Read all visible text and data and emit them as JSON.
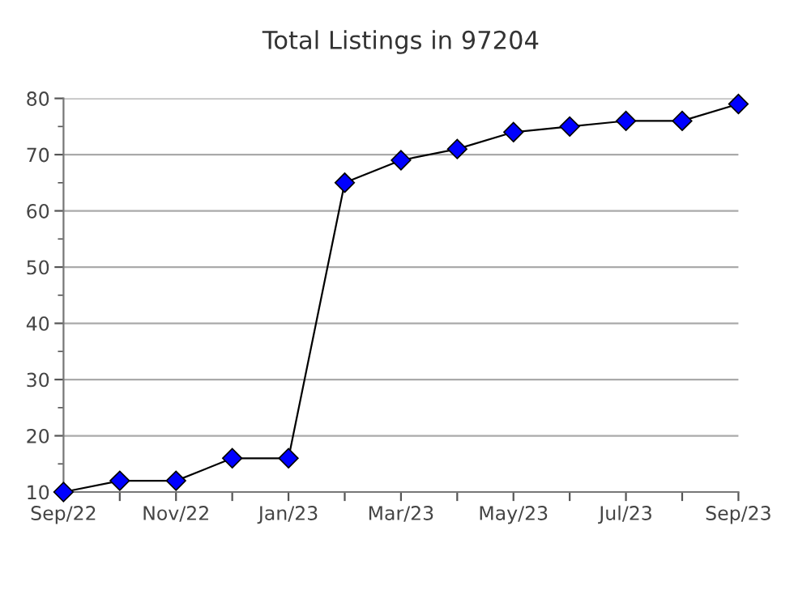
{
  "chart_data": {
    "type": "line",
    "title": "Total Listings in 97204",
    "categories": [
      "Sep/22",
      null,
      "Nov/22",
      null,
      "Jan/23",
      null,
      "Mar/23",
      null,
      "May/23",
      null,
      "Jul/23",
      null,
      "Sep/23"
    ],
    "series": [
      {
        "color": "#0000ff",
        "values": [
          10,
          12,
          12,
          16,
          16,
          65,
          69,
          71,
          74,
          75,
          76,
          76,
          79
        ]
      }
    ],
    "ylim": [
      10,
      80
    ],
    "yticks": [
      10,
      20,
      30,
      40,
      50,
      60,
      70,
      80
    ],
    "grid": "y",
    "marker": "diamond",
    "line_style": "solid",
    "legend": false
  }
}
